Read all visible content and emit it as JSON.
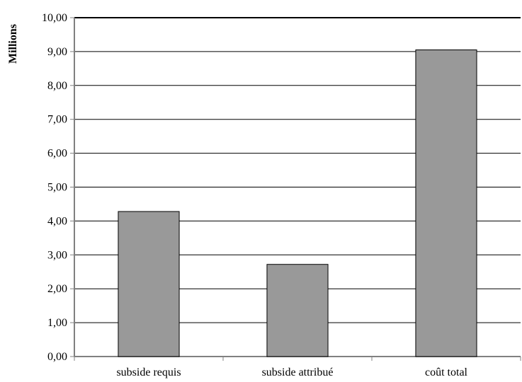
{
  "chart_data": {
    "type": "bar",
    "categories": [
      "subside requis",
      "subside attribué",
      "coût total"
    ],
    "values": [
      4.28,
      2.72,
      9.05
    ],
    "ylabel": "Millions",
    "xlabel": "",
    "ylim": [
      0,
      10
    ],
    "y_ticks": [
      "0,00",
      "1,00",
      "2,00",
      "3,00",
      "4,00",
      "5,00",
      "6,00",
      "7,00",
      "8,00",
      "9,00",
      "10,00"
    ],
    "grid": true,
    "legend": false,
    "bar_color": "#999999",
    "axis_color": "#808080",
    "gridline_color": "#000000"
  }
}
